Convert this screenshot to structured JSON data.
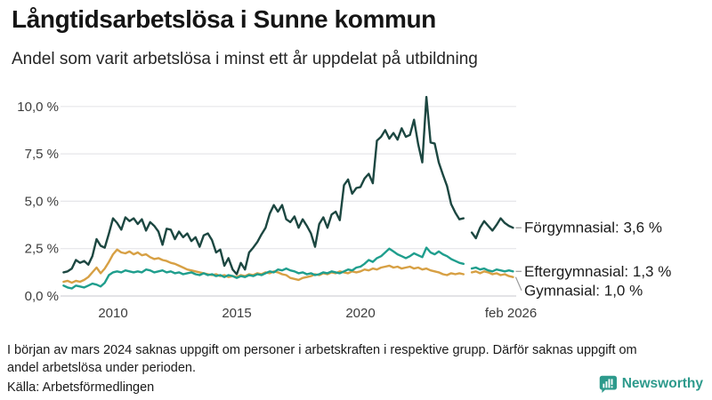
{
  "header": {
    "title": "Långtidsarbetslösa i Sunne kommun",
    "subtitle": "Andel som varit arbetslösa i minst ett år uppdelat på utbildning"
  },
  "footer": {
    "note_line1": "I början av mars 2024 saknas uppgift om personer i arbetskraften i respektive grupp. Därför saknas uppgift om",
    "note_line2": "andel arbetslösa under perioden.",
    "source": "Källa: Arbetsförmedlingen",
    "brand": "Newsworthy"
  },
  "colors": {
    "grid": "#e6e6ea",
    "axis": "#d2d2d8",
    "tick_text": "#3c3c3c",
    "label_text": "#1b1b1b",
    "leader": "#9a9a9a",
    "brand": "#2d9a8c"
  },
  "chart_data": {
    "type": "line",
    "title": "Långtidsarbetslösa i Sunne kommun",
    "subtitle": "Andel som varit arbetslösa i minst ett år uppdelat på utbildning",
    "unit": "%",
    "grid": true,
    "legend_position": "end-of-line labels",
    "x_axis": {
      "range": [
        2007.8,
        2026.3
      ],
      "ticks": [
        {
          "label": "2010",
          "t": 2010
        },
        {
          "label": "2015",
          "t": 2015
        },
        {
          "label": "2020",
          "t": 2020
        },
        {
          "label": "feb 2026",
          "t": 2026.08
        }
      ],
      "data_gap": {
        "from": 2024.17,
        "to": 2024.5,
        "reason": "uppgift saknas från början av mars 2024"
      }
    },
    "y_axis": {
      "range": [
        0,
        10.6
      ],
      "ticks": [
        {
          "label": "0,0 %",
          "value": 0
        },
        {
          "label": "2,5 %",
          "value": 2.5
        },
        {
          "label": "5,0 %",
          "value": 5
        },
        {
          "label": "7,5 %",
          "value": 7.5
        },
        {
          "label": "10,0 %",
          "value": 10
        }
      ]
    },
    "series": [
      {
        "name": "Gymnasial",
        "color": "#d7a044",
        "end_label": "Gymnasial: 1,0 %",
        "end_value": 1.0,
        "segments": [
          {
            "start": 2008.0,
            "step_years": 0.16667,
            "values": [
              0.75,
              0.8,
              0.7,
              0.8,
              0.75,
              0.85,
              1.0,
              1.25,
              1.5,
              1.2,
              1.45,
              1.8,
              2.2,
              2.45,
              2.3,
              2.25,
              2.35,
              2.2,
              2.3,
              2.15,
              2.2,
              2.05,
              1.95,
              2.0,
              1.9,
              1.85,
              1.75,
              1.7,
              1.6,
              1.5,
              1.4,
              1.35,
              1.3,
              1.25,
              1.2,
              1.15,
              1.1,
              1.15,
              1.05,
              1.1,
              1.0,
              1.05,
              1.0,
              1.1,
              1.05,
              1.15,
              1.1,
              1.2,
              1.15,
              1.25,
              1.2,
              1.3,
              1.25,
              1.15,
              1.1,
              0.95,
              0.9,
              0.85,
              0.95,
              1.0,
              1.05,
              1.15,
              1.1,
              1.2,
              1.15,
              1.25,
              1.2,
              1.3,
              1.25,
              1.2,
              1.3,
              1.25,
              1.3,
              1.4,
              1.35,
              1.45,
              1.4,
              1.5,
              1.55,
              1.6,
              1.5,
              1.55,
              1.45,
              1.5,
              1.55,
              1.45,
              1.5,
              1.4,
              1.45,
              1.35,
              1.3,
              1.25,
              1.15,
              1.1,
              1.2,
              1.15,
              1.2,
              1.15
            ]
          },
          {
            "start": 2024.5,
            "step_years": 0.16667,
            "values": [
              1.25,
              1.3,
              1.2,
              1.3,
              1.25,
              1.15,
              1.2,
              1.1,
              1.15,
              1.05,
              1.0
            ]
          }
        ]
      },
      {
        "name": "Eftergymnasial",
        "color": "#1f9e8d",
        "end_label": "Eftergymnasial: 1,3 %",
        "end_value": 1.3,
        "segments": [
          {
            "start": 2008.0,
            "step_years": 0.16667,
            "values": [
              0.55,
              0.45,
              0.4,
              0.55,
              0.5,
              0.45,
              0.55,
              0.65,
              0.6,
              0.5,
              0.7,
              1.1,
              1.25,
              1.3,
              1.25,
              1.35,
              1.3,
              1.25,
              1.3,
              1.25,
              1.4,
              1.35,
              1.25,
              1.3,
              1.35,
              1.25,
              1.3,
              1.2,
              1.25,
              1.15,
              1.2,
              1.25,
              1.15,
              1.1,
              1.2,
              1.1,
              1.15,
              1.05,
              1.1,
              1.0,
              1.1,
              1.05,
              0.95,
              1.05,
              1.0,
              1.1,
              1.05,
              1.15,
              1.1,
              1.2,
              1.3,
              1.25,
              1.4,
              1.35,
              1.45,
              1.35,
              1.3,
              1.2,
              1.25,
              1.15,
              1.2,
              1.1,
              1.15,
              1.25,
              1.2,
              1.3,
              1.25,
              1.2,
              1.3,
              1.4,
              1.35,
              1.5,
              1.55,
              1.7,
              1.9,
              1.8,
              2.0,
              2.1,
              2.3,
              2.5,
              2.35,
              2.2,
              2.1,
              2.0,
              2.1,
              2.25,
              2.15,
              2.05,
              2.55,
              2.3,
              2.2,
              2.35,
              2.2,
              2.1,
              1.95,
              1.85,
              1.75,
              1.7
            ]
          },
          {
            "start": 2024.5,
            "step_years": 0.16667,
            "values": [
              1.45,
              1.5,
              1.4,
              1.45,
              1.35,
              1.3,
              1.4,
              1.35,
              1.3,
              1.35,
              1.3
            ]
          }
        ]
      },
      {
        "name": "Förgymnasial",
        "color": "#1c4741",
        "end_label": "Förgymnasial: 3,6 %",
        "end_value": 3.6,
        "segments": [
          {
            "start": 2008.0,
            "step_years": 0.16667,
            "values": [
              1.25,
              1.3,
              1.45,
              1.9,
              1.75,
              1.85,
              1.65,
              2.1,
              3.0,
              2.65,
              2.55,
              3.3,
              4.1,
              3.85,
              3.5,
              4.15,
              3.95,
              4.1,
              3.8,
              4.05,
              3.45,
              3.9,
              3.7,
              3.4,
              2.7,
              3.55,
              3.5,
              3.0,
              3.4,
              3.1,
              3.3,
              2.9,
              3.1,
              2.6,
              3.2,
              3.3,
              2.95,
              2.3,
              2.45,
              1.6,
              2.0,
              1.4,
              1.15,
              1.75,
              1.4,
              2.3,
              2.55,
              2.85,
              3.25,
              3.6,
              4.35,
              4.8,
              4.45,
              4.8,
              4.05,
              3.9,
              4.2,
              3.6,
              4.05,
              3.7,
              3.3,
              2.6,
              3.8,
              4.15,
              3.6,
              4.3,
              4.45,
              4.0,
              5.85,
              6.15,
              5.4,
              5.7,
              5.75,
              6.2,
              6.45,
              5.95,
              8.2,
              8.4,
              8.75,
              8.3,
              8.6,
              8.25,
              8.85,
              8.4,
              8.5,
              9.3,
              8.0,
              7.05,
              10.5,
              8.1,
              8.05,
              7.05,
              6.4,
              5.8,
              4.85,
              4.4,
              4.05,
              4.1
            ]
          },
          {
            "start": 2024.5,
            "step_years": 0.16667,
            "values": [
              3.35,
              3.05,
              3.6,
              3.95,
              3.7,
              3.45,
              3.75,
              4.1,
              3.85,
              3.7,
              3.6
            ]
          }
        ]
      }
    ]
  }
}
